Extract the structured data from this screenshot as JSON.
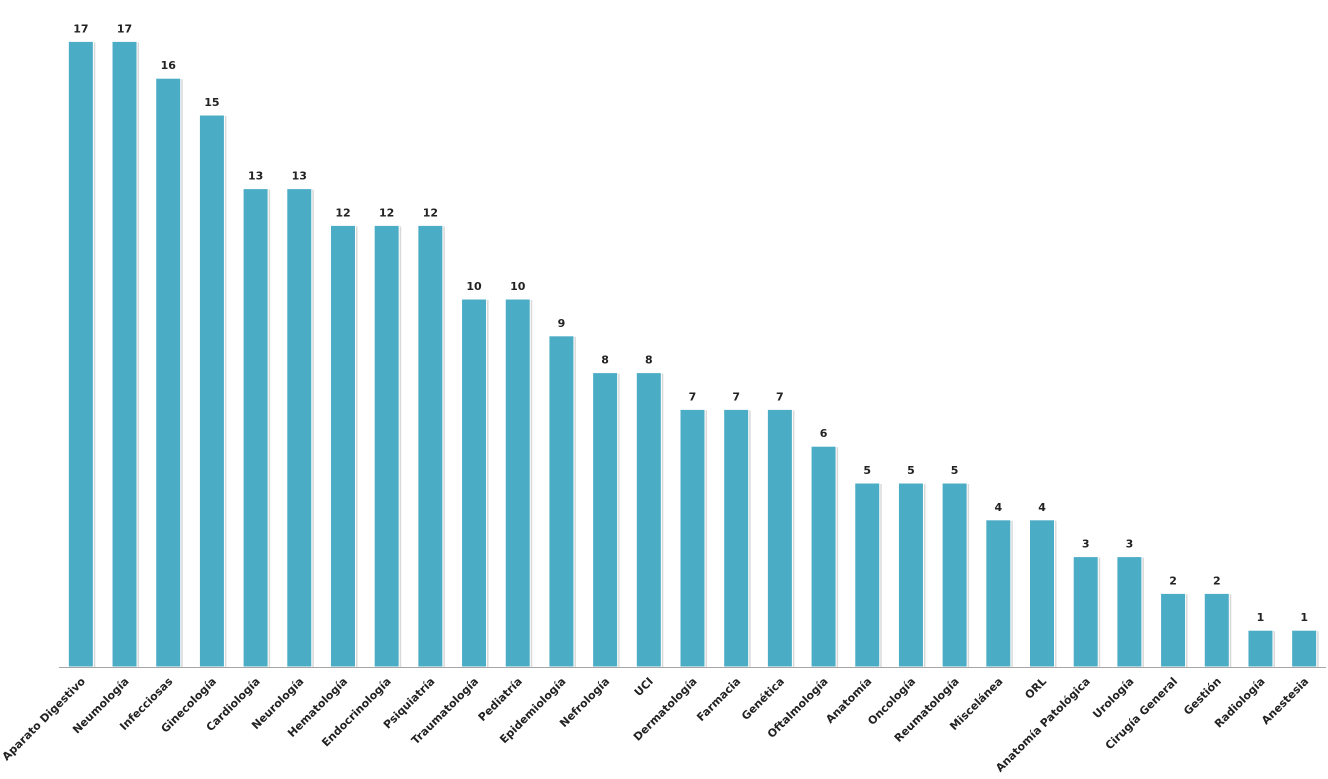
{
  "chart_data": {
    "type": "bar",
    "title": "",
    "xlabel": "",
    "ylabel": "",
    "ylim": [
      0,
      17
    ],
    "grid": false,
    "legend": "none",
    "data_labels": true,
    "categories": [
      "Aparato Digestivo",
      "Neumología",
      "Infecciosas",
      "Ginecología",
      "Cardiología",
      "Neurología",
      "Hematología",
      "Endocrinología",
      "Psiquiatría",
      "Traumatología",
      "Pediatría",
      "Epidemiología",
      "Nefrología",
      "UCI",
      "Dermatología",
      "Farmacia",
      "Genética",
      "Oftalmología",
      "Anatomía",
      "Oncología",
      "Reumatología",
      "Miscelánea",
      "ORL",
      "Anatomía Patológica",
      "Urología",
      "Cirugía General",
      "Gestión",
      "Radiología",
      "Anestesia"
    ],
    "values": [
      17,
      17,
      16,
      15,
      13,
      13,
      12,
      12,
      12,
      10,
      10,
      9,
      8,
      8,
      7,
      7,
      7,
      6,
      5,
      5,
      5,
      4,
      4,
      3,
      3,
      2,
      2,
      1,
      1
    ]
  },
  "colors": {
    "bar": "#4bacc6",
    "bar_edge": "#ffffff",
    "shadow": "#d9d9d9",
    "axis": "#a6a6a6"
  }
}
